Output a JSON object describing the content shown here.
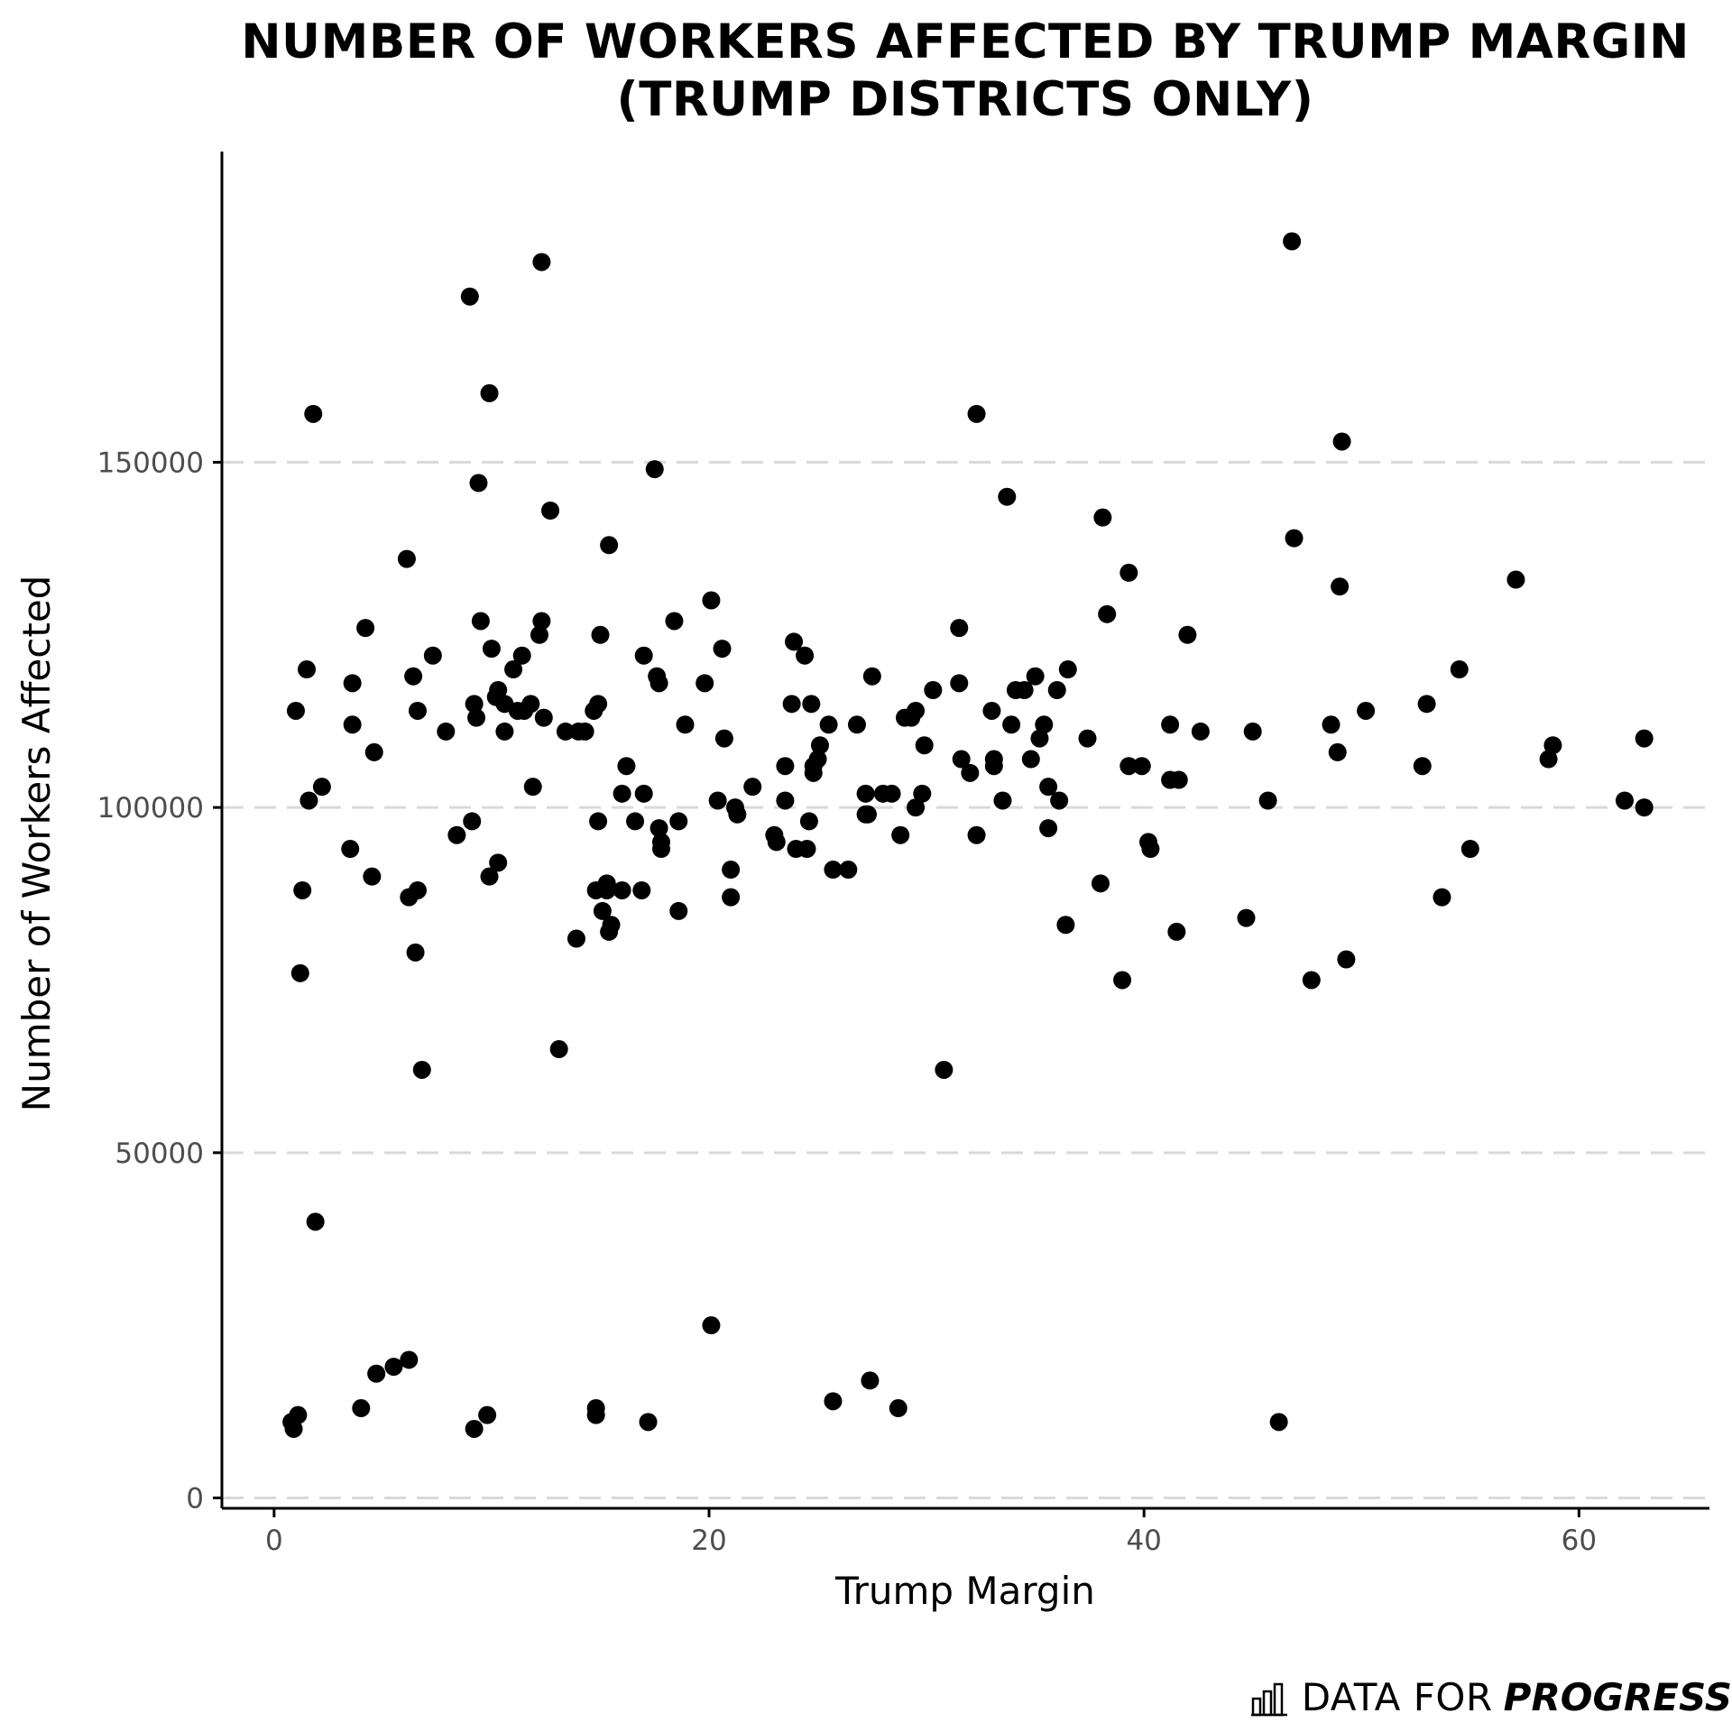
{
  "chart_data": {
    "type": "scatter",
    "title": [
      "NUMBER OF WORKERS AFFECTED BY TRUMP MARGIN",
      "(TRUMP DISTRICTS ONLY)"
    ],
    "xlabel": "Trump Margin",
    "ylabel": "Number of Workers Affected",
    "xlim": [
      -2.4,
      66
    ],
    "ylim": [
      -1500,
      195000
    ],
    "xticks": [
      0,
      20,
      40,
      60
    ],
    "yticks": [
      0,
      50000,
      100000,
      150000
    ],
    "grid": "horizontal-dashed",
    "point_color": "#000000",
    "points": [
      [
        0.8,
        11000
      ],
      [
        0.9,
        10000
      ],
      [
        1.1,
        12000
      ],
      [
        1.2,
        76000
      ],
      [
        1.3,
        88000
      ],
      [
        1.0,
        114000
      ],
      [
        1.5,
        120000
      ],
      [
        1.6,
        101000
      ],
      [
        1.8,
        157000
      ],
      [
        1.9,
        40000
      ],
      [
        2.2,
        103000
      ],
      [
        3.5,
        94000
      ],
      [
        3.6,
        112000
      ],
      [
        3.6,
        118000
      ],
      [
        4.0,
        13000
      ],
      [
        4.2,
        126000
      ],
      [
        4.5,
        90000
      ],
      [
        4.6,
        108000
      ],
      [
        4.7,
        18000
      ],
      [
        5.5,
        19000
      ],
      [
        6.2,
        20000
      ],
      [
        6.1,
        136000
      ],
      [
        6.2,
        87000
      ],
      [
        6.4,
        119000
      ],
      [
        6.5,
        79000
      ],
      [
        6.6,
        114000
      ],
      [
        6.6,
        88000
      ],
      [
        6.8,
        62000
      ],
      [
        7.3,
        122000
      ],
      [
        7.9,
        111000
      ],
      [
        8.4,
        96000
      ],
      [
        9.0,
        174000
      ],
      [
        9.1,
        98000
      ],
      [
        9.2,
        115000
      ],
      [
        9.2,
        10000
      ],
      [
        9.3,
        113000
      ],
      [
        9.4,
        147000
      ],
      [
        9.5,
        127000
      ],
      [
        9.8,
        12000
      ],
      [
        9.9,
        160000
      ],
      [
        10.0,
        123000
      ],
      [
        9.9,
        90000
      ],
      [
        10.2,
        116000
      ],
      [
        10.3,
        117000
      ],
      [
        10.3,
        92000
      ],
      [
        10.6,
        115000
      ],
      [
        10.6,
        111000
      ],
      [
        11.0,
        120000
      ],
      [
        11.2,
        114000
      ],
      [
        11.4,
        122000
      ],
      [
        11.5,
        114000
      ],
      [
        11.8,
        115000
      ],
      [
        11.9,
        103000
      ],
      [
        12.3,
        179000
      ],
      [
        12.2,
        125000
      ],
      [
        12.3,
        127000
      ],
      [
        12.4,
        113000
      ],
      [
        12.7,
        143000
      ],
      [
        13.1,
        65000
      ],
      [
        13.4,
        111000
      ],
      [
        13.9,
        81000
      ],
      [
        14.0,
        111000
      ],
      [
        14.3,
        111000
      ],
      [
        14.7,
        114000
      ],
      [
        14.8,
        13000
      ],
      [
        14.8,
        12000
      ],
      [
        14.8,
        88000
      ],
      [
        14.9,
        98000
      ],
      [
        14.9,
        115000
      ],
      [
        15.0,
        125000
      ],
      [
        15.1,
        85000
      ],
      [
        15.3,
        88000
      ],
      [
        15.3,
        89000
      ],
      [
        15.4,
        138000
      ],
      [
        15.4,
        82000
      ],
      [
        15.5,
        83000
      ],
      [
        16.0,
        88000
      ],
      [
        16.0,
        102000
      ],
      [
        16.2,
        106000
      ],
      [
        16.6,
        98000
      ],
      [
        16.9,
        88000
      ],
      [
        17.0,
        122000
      ],
      [
        17.0,
        102000
      ],
      [
        17.2,
        11000
      ],
      [
        17.5,
        149000
      ],
      [
        17.6,
        119000
      ],
      [
        17.7,
        118000
      ],
      [
        17.7,
        97000
      ],
      [
        17.8,
        95000
      ],
      [
        17.8,
        94000
      ],
      [
        18.4,
        127000
      ],
      [
        18.6,
        98000
      ],
      [
        18.6,
        85000
      ],
      [
        18.9,
        112000
      ],
      [
        19.8,
        118000
      ],
      [
        20.1,
        25000
      ],
      [
        20.1,
        130000
      ],
      [
        20.4,
        101000
      ],
      [
        20.6,
        123000
      ],
      [
        20.7,
        110000
      ],
      [
        21.0,
        91000
      ],
      [
        21.0,
        87000
      ],
      [
        21.2,
        100000
      ],
      [
        21.3,
        99000
      ],
      [
        22.0,
        103000
      ],
      [
        23.0,
        96000
      ],
      [
        23.1,
        95000
      ],
      [
        23.5,
        106000
      ],
      [
        23.5,
        101000
      ],
      [
        23.8,
        115000
      ],
      [
        23.9,
        124000
      ],
      [
        24.0,
        94000
      ],
      [
        24.4,
        122000
      ],
      [
        24.5,
        94000
      ],
      [
        24.6,
        98000
      ],
      [
        24.7,
        115000
      ],
      [
        24.8,
        106000
      ],
      [
        24.8,
        105000
      ],
      [
        25.0,
        107000
      ],
      [
        25.1,
        109000
      ],
      [
        25.5,
        112000
      ],
      [
        25.7,
        14000
      ],
      [
        25.7,
        91000
      ],
      [
        26.4,
        91000
      ],
      [
        26.8,
        112000
      ],
      [
        27.2,
        102000
      ],
      [
        27.2,
        99000
      ],
      [
        27.3,
        99000
      ],
      [
        27.4,
        17000
      ],
      [
        27.5,
        119000
      ],
      [
        28.0,
        102000
      ],
      [
        28.4,
        102000
      ],
      [
        28.7,
        13000
      ],
      [
        28.8,
        96000
      ],
      [
        29.0,
        113000
      ],
      [
        29.3,
        113000
      ],
      [
        29.5,
        114000
      ],
      [
        29.5,
        100000
      ],
      [
        29.8,
        102000
      ],
      [
        29.9,
        109000
      ],
      [
        30.3,
        117000
      ],
      [
        30.8,
        62000
      ],
      [
        31.5,
        126000
      ],
      [
        31.5,
        118000
      ],
      [
        31.6,
        107000
      ],
      [
        32.0,
        105000
      ],
      [
        32.3,
        157000
      ],
      [
        32.3,
        96000
      ],
      [
        33.0,
        114000
      ],
      [
        33.1,
        106000
      ],
      [
        33.1,
        107000
      ],
      [
        33.5,
        101000
      ],
      [
        33.7,
        145000
      ],
      [
        33.9,
        112000
      ],
      [
        34.1,
        117000
      ],
      [
        34.5,
        117000
      ],
      [
        34.8,
        107000
      ],
      [
        35.0,
        119000
      ],
      [
        35.2,
        110000
      ],
      [
        35.4,
        112000
      ],
      [
        35.6,
        103000
      ],
      [
        35.6,
        97000
      ],
      [
        36.0,
        117000
      ],
      [
        36.1,
        101000
      ],
      [
        36.4,
        83000
      ],
      [
        36.5,
        120000
      ],
      [
        37.4,
        110000
      ],
      [
        38.0,
        89000
      ],
      [
        38.1,
        142000
      ],
      [
        38.3,
        128000
      ],
      [
        39.0,
        75000
      ],
      [
        39.3,
        134000
      ],
      [
        39.3,
        106000
      ],
      [
        39.9,
        106000
      ],
      [
        40.2,
        95000
      ],
      [
        40.3,
        94000
      ],
      [
        41.2,
        112000
      ],
      [
        41.2,
        104000
      ],
      [
        41.5,
        82000
      ],
      [
        41.6,
        104000
      ],
      [
        42.0,
        125000
      ],
      [
        42.6,
        111000
      ],
      [
        44.7,
        84000
      ],
      [
        45.0,
        111000
      ],
      [
        45.7,
        101000
      ],
      [
        46.2,
        11000
      ],
      [
        46.8,
        182000
      ],
      [
        46.9,
        139000
      ],
      [
        47.7,
        75000
      ],
      [
        48.6,
        112000
      ],
      [
        48.9,
        108000
      ],
      [
        49.0,
        132000
      ],
      [
        49.1,
        153000
      ],
      [
        49.3,
        78000
      ],
      [
        50.2,
        114000
      ],
      [
        52.8,
        106000
      ],
      [
        53.0,
        115000
      ],
      [
        53.7,
        87000
      ],
      [
        54.5,
        120000
      ],
      [
        55.0,
        94000
      ],
      [
        57.1,
        133000
      ],
      [
        58.6,
        107000
      ],
      [
        58.8,
        109000
      ],
      [
        62.1,
        101000
      ],
      [
        63.0,
        110000
      ],
      [
        63.0,
        100000
      ]
    ]
  },
  "logo": {
    "light": "DATA FOR",
    "bold": "PROGRESS"
  }
}
